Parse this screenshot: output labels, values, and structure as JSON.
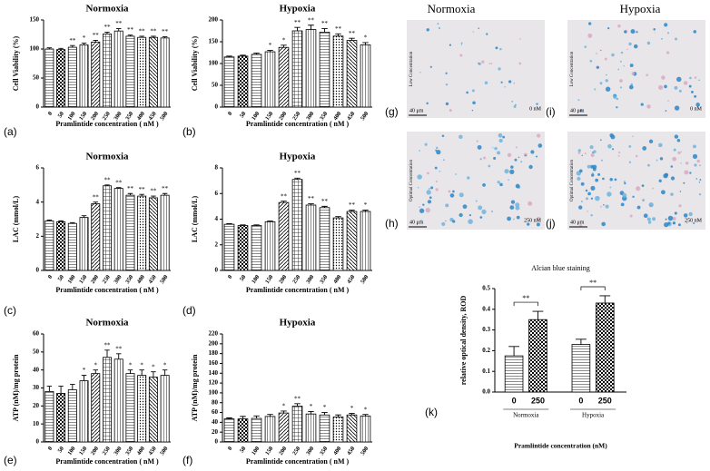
{
  "chart_data": [
    {
      "type": "bar",
      "panel_label": "(a)",
      "title": "Normoxia",
      "ylabel": "Cell Viability (%)",
      "xlabel": "Pramlintide concentration ( nM )",
      "categories": [
        "0",
        "50",
        "100",
        "150",
        "200",
        "250",
        "300",
        "350",
        "400",
        "450",
        "500"
      ],
      "values": [
        100,
        99,
        103,
        107,
        112,
        126,
        131,
        122,
        120,
        120,
        119
      ],
      "errors": [
        2,
        2,
        3,
        3,
        3,
        3,
        4,
        2,
        2,
        2,
        2
      ],
      "annotations": [
        null,
        null,
        "**",
        "*",
        "**",
        "**",
        "**",
        "**",
        "**",
        "**",
        "**"
      ],
      "ylim": [
        0,
        150
      ],
      "yticks": [
        0,
        50,
        100,
        150
      ]
    },
    {
      "type": "bar",
      "panel_label": "(b)",
      "title": "Hypoxia",
      "ylabel": "Cell Viability (%)",
      "xlabel": "Pramlintide concentration ( nM )",
      "categories": [
        "0",
        "50",
        "100",
        "150",
        "200",
        "250",
        "300",
        "350",
        "400",
        "450",
        "500"
      ],
      "values": [
        115,
        117,
        121,
        127,
        137,
        175,
        178,
        172,
        163,
        153,
        143
      ],
      "errors": [
        2,
        2,
        3,
        3,
        5,
        8,
        10,
        8,
        5,
        5,
        5
      ],
      "annotations": [
        null,
        null,
        null,
        "*",
        "*",
        "**",
        "**",
        "**",
        "**",
        "**",
        "*"
      ],
      "ylim": [
        0,
        200
      ],
      "yticks": [
        0,
        50,
        100,
        150,
        200
      ]
    },
    {
      "type": "bar",
      "panel_label": "(c)",
      "title": "Normoxia",
      "ylabel": "LAC (mmol/L)",
      "xlabel": "Pramlintide concentration ( nM )",
      "categories": [
        "0",
        "50",
        "100",
        "150",
        "200",
        "250",
        "300",
        "350",
        "400",
        "450",
        "500"
      ],
      "values": [
        2.9,
        2.85,
        2.75,
        3.1,
        3.9,
        4.95,
        4.8,
        4.4,
        4.35,
        4.25,
        4.4
      ],
      "errors": [
        0.05,
        0.05,
        0.05,
        0.1,
        0.1,
        0.05,
        0.05,
        0.1,
        0.1,
        0.1,
        0.1
      ],
      "annotations": [
        null,
        null,
        null,
        null,
        "**",
        "**",
        "**",
        "**",
        "**",
        "**",
        "**"
      ],
      "ylim": [
        0,
        6
      ],
      "yticks": [
        0,
        2,
        4,
        6
      ]
    },
    {
      "type": "bar",
      "panel_label": "(d)",
      "title": "Hypoxia",
      "ylabel": "LAC (mmol/L)",
      "xlabel": "Pramlintide concentration ( nM )",
      "categories": [
        "0",
        "50",
        "100",
        "150",
        "200",
        "250",
        "300",
        "350",
        "400",
        "450",
        "500"
      ],
      "values": [
        3.6,
        3.5,
        3.5,
        3.8,
        5.3,
        7.1,
        5.1,
        4.9,
        4.1,
        4.6,
        4.6
      ],
      "errors": [
        0.05,
        0.05,
        0.05,
        0.05,
        0.1,
        0.1,
        0.1,
        0.1,
        0.1,
        0.1,
        0.1
      ],
      "annotations": [
        null,
        null,
        null,
        null,
        "**",
        "**",
        "**",
        "**",
        null,
        "**",
        "*"
      ],
      "ylim": [
        0,
        8
      ],
      "yticks": [
        0,
        2,
        4,
        6,
        8
      ]
    },
    {
      "type": "bar",
      "panel_label": "(e)",
      "title": "Normoxia",
      "ylabel": "ATP (nM)/mg protein",
      "xlabel": "Pramlintide concentration ( nM )",
      "categories": [
        "0",
        "50",
        "100",
        "150",
        "200",
        "250",
        "300",
        "350",
        "400",
        "450",
        "500"
      ],
      "values": [
        28,
        27,
        29,
        34,
        38,
        47,
        46,
        38,
        37,
        36,
        37
      ],
      "errors": [
        3,
        4,
        3,
        3,
        2,
        4,
        3,
        2,
        3,
        3,
        3
      ],
      "annotations": [
        null,
        null,
        null,
        "*",
        "*",
        "**",
        "**",
        "*",
        "*",
        "*",
        "*"
      ],
      "ylim": [
        0,
        60
      ],
      "yticks": [
        0,
        10,
        20,
        30,
        40,
        50,
        60
      ]
    },
    {
      "type": "bar",
      "panel_label": "(f)",
      "title": "Hypoxia",
      "ylabel": "ATP (nM)/mg protein",
      "xlabel": "Pramlintide concentration ( nM )",
      "categories": [
        "0",
        "50",
        "100",
        "150",
        "200",
        "250",
        "300",
        "350",
        "400",
        "450",
        "500"
      ],
      "values": [
        47,
        47,
        48,
        52,
        59,
        73,
        57,
        55,
        51,
        55,
        53
      ],
      "errors": [
        2,
        5,
        5,
        4,
        4,
        5,
        5,
        5,
        4,
        3,
        3
      ],
      "annotations": [
        null,
        null,
        null,
        null,
        "*",
        "**",
        "*",
        "*",
        null,
        "*",
        "*"
      ],
      "ylim": [
        0,
        220
      ],
      "yticks": [
        0,
        20,
        40,
        60,
        80,
        100,
        120,
        140,
        160,
        180,
        200,
        220
      ]
    },
    {
      "type": "bar",
      "panel_label": "(k)",
      "title": "Alcian blue staining",
      "ylabel": "relative optical density, ROD",
      "xlabel": "Pramlintide concentration (nM)",
      "categories": [
        "0",
        "250",
        "0",
        "250"
      ],
      "groups": [
        "Normoxia",
        "Hypoxia"
      ],
      "values": [
        0.175,
        0.35,
        0.23,
        0.43
      ],
      "errors": [
        0.045,
        0.04,
        0.025,
        0.035
      ],
      "comparisons": [
        "**",
        "**"
      ],
      "ylim": [
        0,
        0.5
      ],
      "yticks": [
        {
          "value": 0,
          "label": "0.0"
        },
        0.1,
        0.2,
        0.3,
        0.4,
        0.5
      ]
    }
  ],
  "micrographs": {
    "columns": [
      "Normoxia",
      "Hypoxia"
    ],
    "panels": [
      {
        "letter": "(g)",
        "side_label": "Low Concentration",
        "scale": "40 μm",
        "concentration": "0 nM"
      },
      {
        "letter": "(i)",
        "side_label": "Low Concentration",
        "scale": "40 μm",
        "concentration": "0 nM"
      },
      {
        "letter": "(h)",
        "side_label": "Optimal Concentration",
        "scale": "40 μm",
        "concentration": "250 nM"
      },
      {
        "letter": "(j)",
        "side_label": "Optimal Concentration",
        "scale": "40 μm",
        "concentration": "250 nM"
      }
    ]
  }
}
